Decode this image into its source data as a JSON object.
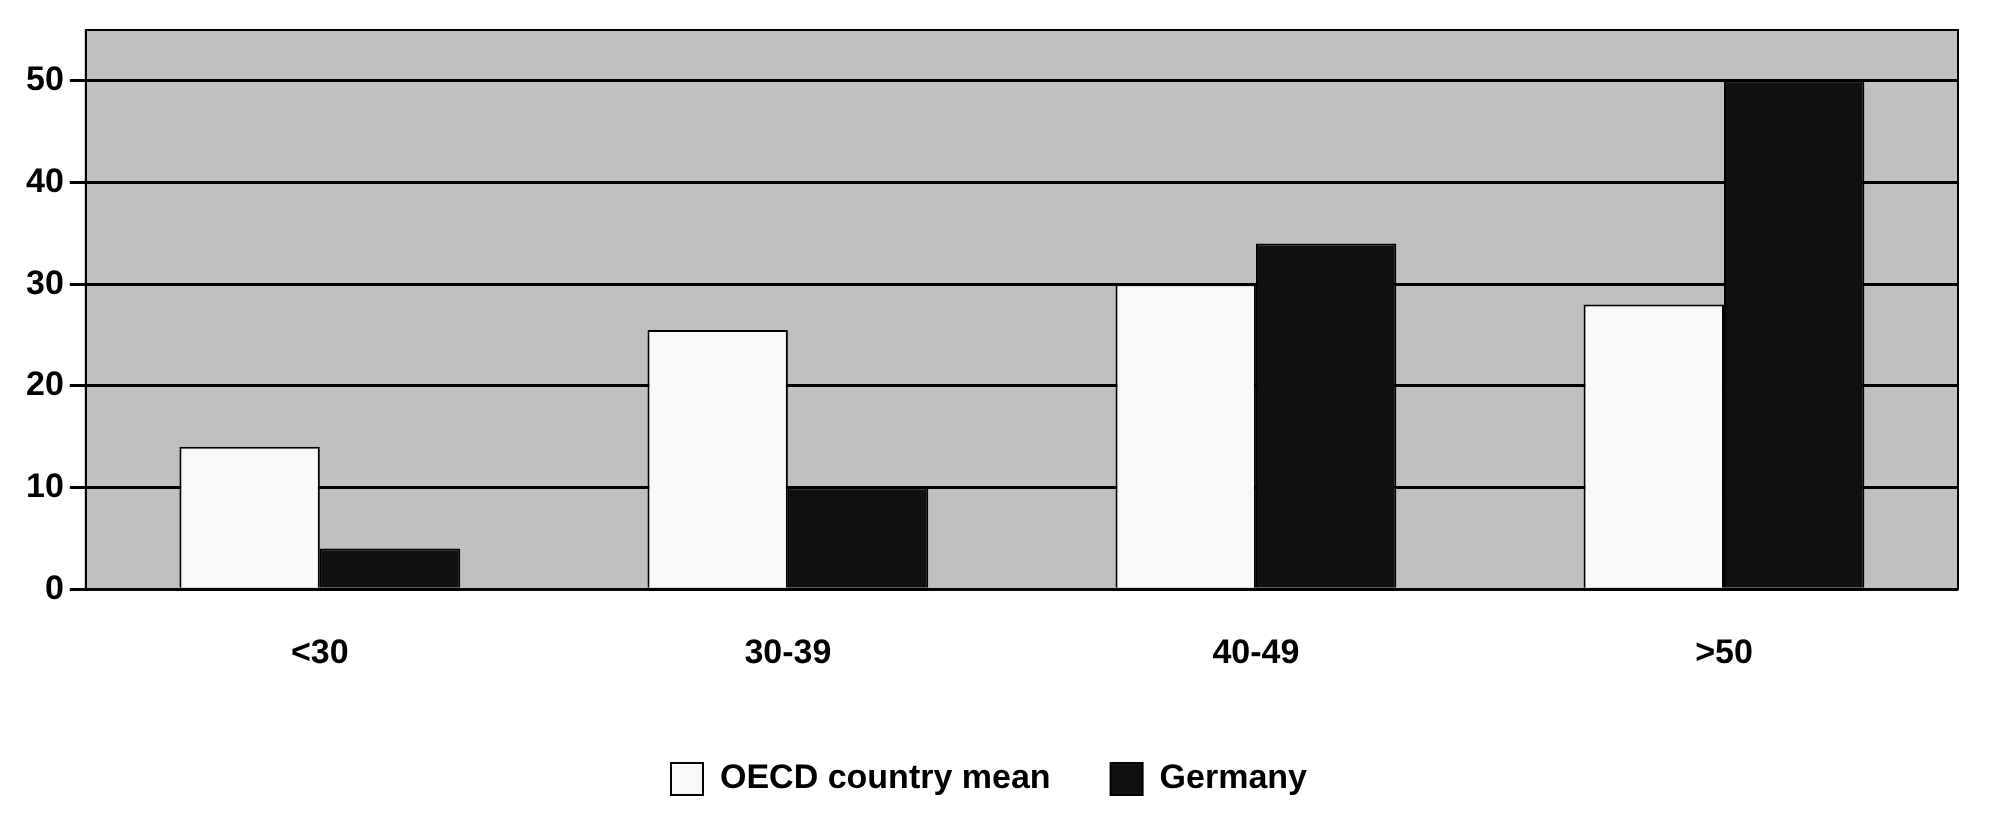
{
  "chart_data": {
    "type": "bar",
    "categories": [
      "<30",
      "30-39",
      "40-49",
      ">50"
    ],
    "series": [
      {
        "name": "OECD country mean",
        "color": "#f8f8f8",
        "values": [
          14,
          25.5,
          30,
          28
        ]
      },
      {
        "name": "Germany",
        "color": "#111111",
        "values": [
          4,
          10,
          34,
          50
        ]
      }
    ],
    "ylim": [
      0,
      55
    ],
    "yticks": [
      0,
      10,
      20,
      30,
      40,
      50
    ],
    "grid": "y",
    "legend": "bottom"
  }
}
